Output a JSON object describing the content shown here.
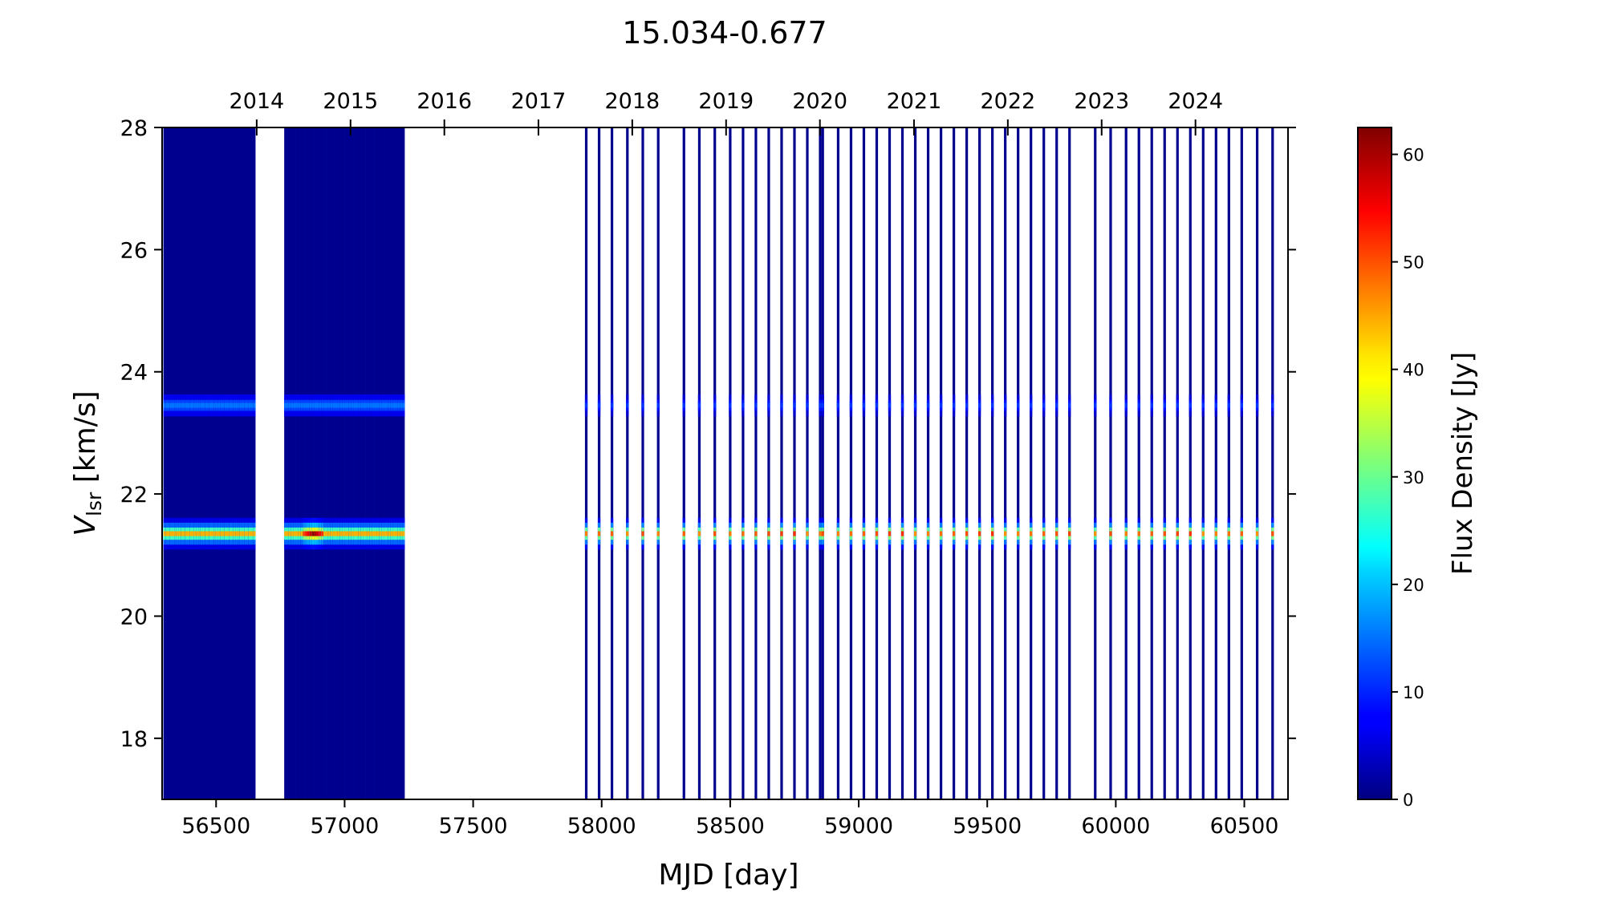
{
  "chart_data": {
    "type": "heatmap",
    "title": "15.034-0.677",
    "xlabel": "MJD [day]",
    "ylabel_main": "V",
    "ylabel_sub": "lsr",
    "ylabel_unit": " [km/s]",
    "colorbar_label": "Flux Density [Jy]",
    "colormap": "jet",
    "xlim": [
      56290,
      60670
    ],
    "ylim": [
      17,
      28
    ],
    "clim": [
      0,
      62.5
    ],
    "x_ticks": [
      56500,
      57000,
      57500,
      58000,
      58500,
      59000,
      59500,
      60000,
      60500
    ],
    "y_ticks": [
      18,
      20,
      22,
      24,
      26,
      28
    ],
    "colorbar_ticks": [
      0,
      10,
      20,
      30,
      40,
      50,
      60
    ],
    "top_axis": {
      "labels": [
        "2014",
        "2015",
        "2016",
        "2017",
        "2018",
        "2019",
        "2020",
        "2021",
        "2022",
        "2023",
        "2024"
      ],
      "mjd": [
        56658,
        57023,
        57388,
        57754,
        58119,
        58484,
        58849,
        59215,
        59580,
        59945,
        60310
      ]
    },
    "spectral_features": [
      {
        "velocity": 21.35,
        "width": 0.14,
        "peak_flux": 44
      },
      {
        "velocity": 23.45,
        "width": 0.12,
        "peak_flux": 15
      }
    ],
    "peak": {
      "mjd": 56880,
      "velocity": 21.35,
      "flux": 62
    },
    "observation_blocks": [
      {
        "start": 56300,
        "end": 56650,
        "step": 8.5
      },
      {
        "start": 56770,
        "end": 57230,
        "step": 9
      }
    ],
    "observations": [
      57940,
      57990,
      58040,
      58100,
      58160,
      58220,
      58320,
      58380,
      58440,
      58500,
      58550,
      58600,
      58650,
      58700,
      58750,
      58800,
      58850,
      58860,
      58920,
      58970,
      59020,
      59070,
      59120,
      59170,
      59220,
      59270,
      59320,
      59370,
      59420,
      59470,
      59520,
      59570,
      59620,
      59670,
      59720,
      59770,
      59820,
      59920,
      59980,
      60040,
      60090,
      60140,
      60190,
      60240,
      60290,
      60340,
      60390,
      60440,
      60490,
      60550,
      60610
    ]
  }
}
